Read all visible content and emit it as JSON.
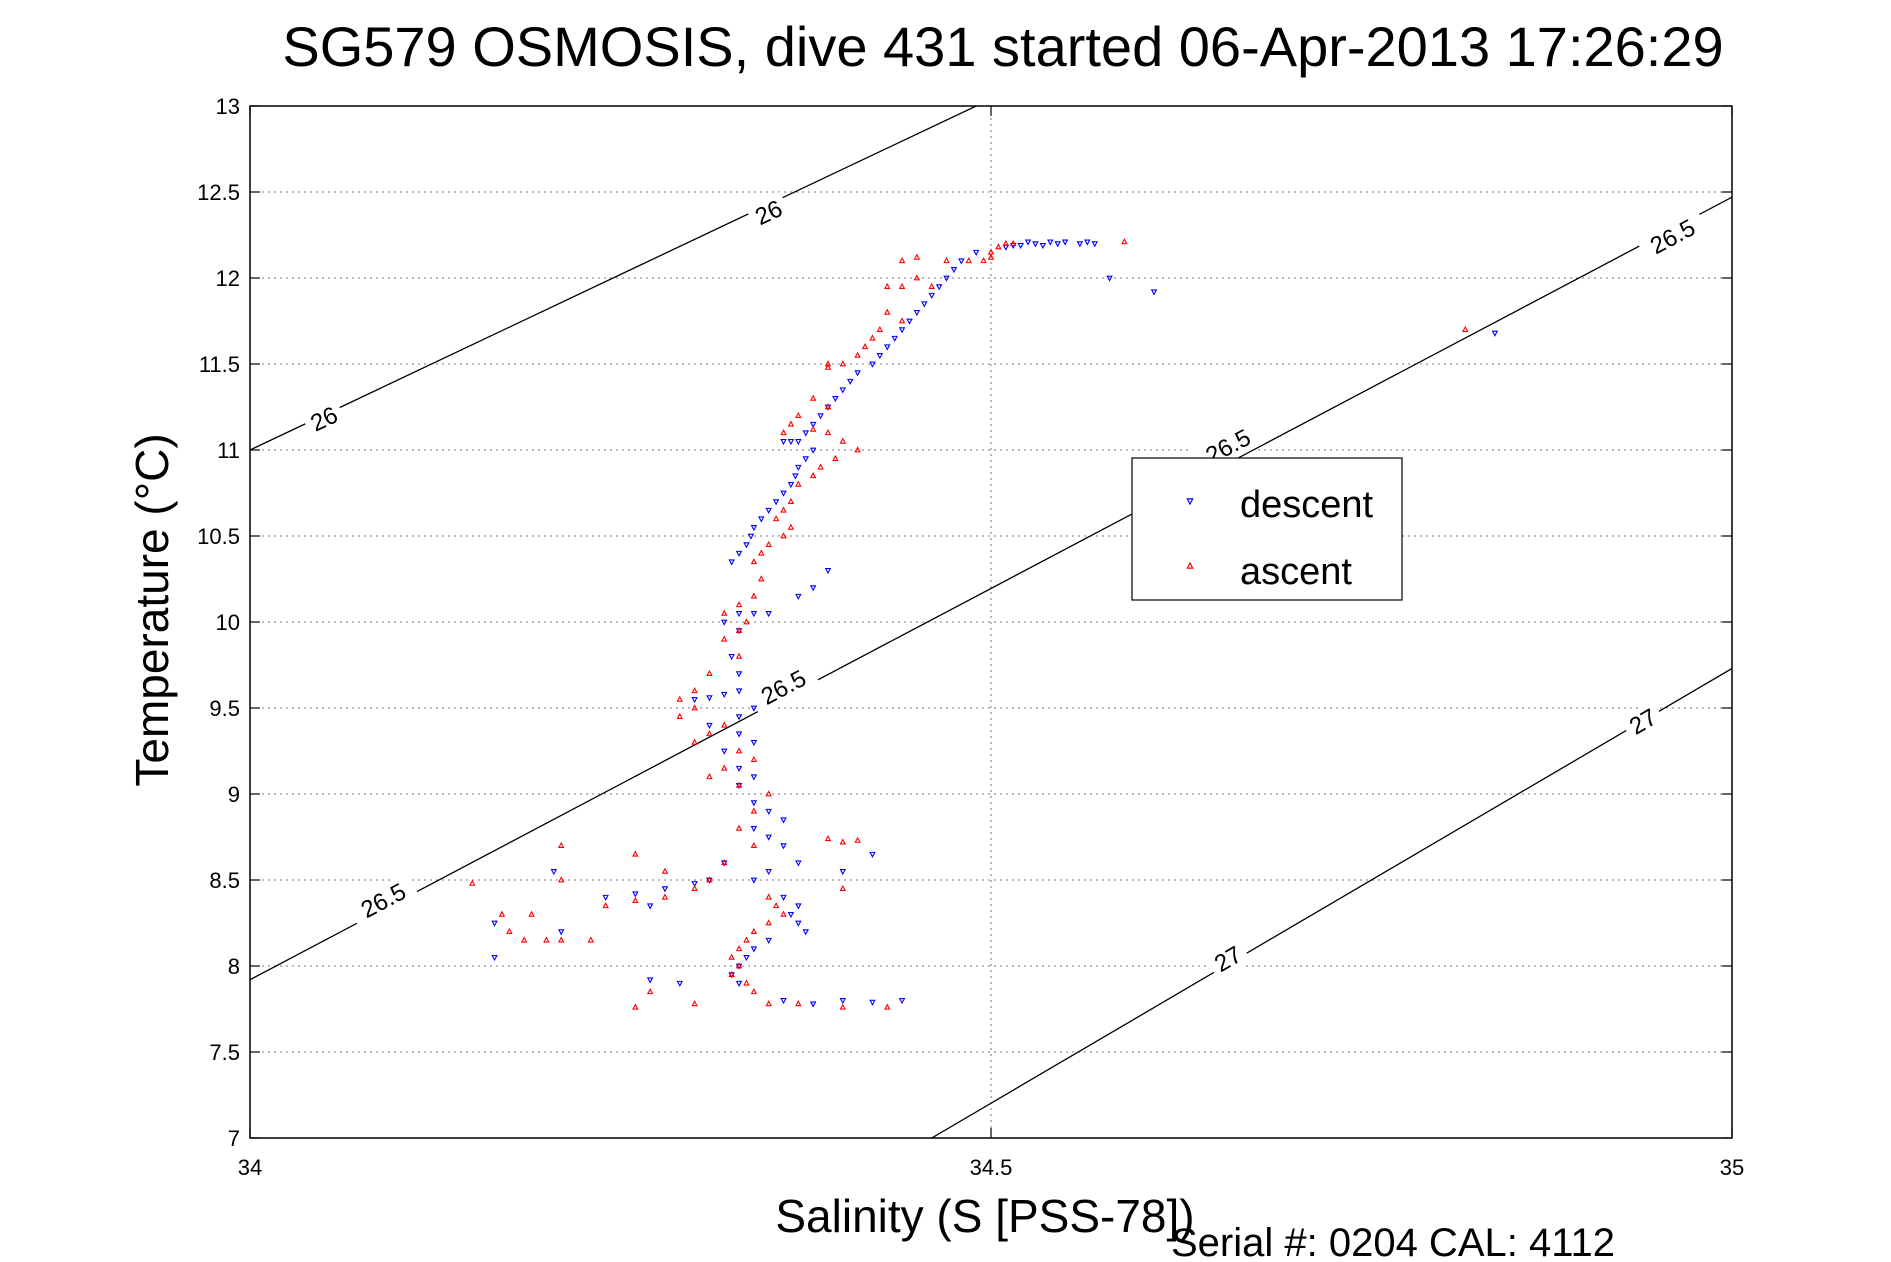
{
  "chart_data": {
    "type": "scatter",
    "title": "SG579 OSMOSIS, dive 431 started 06-Apr-2013 17:26:29",
    "xlabel": "Salinity (S [PSS-78])",
    "ylabel": "Temperature (°C)",
    "xlim": [
      34,
      35
    ],
    "ylim": [
      7,
      13
    ],
    "xticks": [
      34,
      34.5,
      35
    ],
    "yticks": [
      7,
      7.5,
      8,
      8.5,
      9,
      9.5,
      10,
      10.5,
      11,
      11.5,
      12,
      12.5,
      13
    ],
    "xtick_labels": [
      "34",
      "34.5",
      "35"
    ],
    "ytick_labels": [
      "7",
      "7.5",
      "8",
      "8.5",
      "9",
      "9.5",
      "10",
      "10.5",
      "11",
      "11.5",
      "12",
      "12.5",
      "13"
    ],
    "grid": true,
    "legend_position": "right-middle",
    "footer": "Serial #: 0204  CAL: 4112",
    "isopycnals": [
      {
        "value": 26,
        "label": "26",
        "points": [
          [
            34.0,
            11.0
          ],
          [
            34.49,
            13.0
          ]
        ],
        "label_points": [
          [
            34.05,
            11.18
          ],
          [
            34.35,
            12.38
          ]
        ]
      },
      {
        "value": 26.5,
        "label": "26.5",
        "points": [
          [
            34.0,
            7.92
          ],
          [
            35.0,
            12.47
          ]
        ],
        "label_points": [
          [
            34.09,
            8.38
          ],
          [
            34.36,
            9.62
          ],
          [
            34.66,
            11.02
          ],
          [
            34.96,
            12.24
          ]
        ]
      },
      {
        "value": 27,
        "label": "27",
        "points": [
          [
            34.46,
            7.0
          ],
          [
            35.0,
            9.73
          ]
        ],
        "label_points": [
          [
            34.66,
            8.04
          ],
          [
            34.94,
            9.42
          ]
        ]
      }
    ],
    "series": [
      {
        "name": "descent",
        "color": "#0000ff",
        "marker": "triangle-down",
        "points": [
          [
            34.56,
            12.2
          ],
          [
            34.54,
            12.21
          ],
          [
            34.53,
            12.2
          ],
          [
            34.52,
            12.19
          ],
          [
            34.51,
            12.18
          ],
          [
            34.57,
            12.2
          ],
          [
            34.565,
            12.21
          ],
          [
            34.55,
            12.21
          ],
          [
            34.545,
            12.2
          ],
          [
            34.535,
            12.19
          ],
          [
            34.525,
            12.21
          ],
          [
            34.515,
            12.19
          ],
          [
            34.58,
            12.0
          ],
          [
            34.61,
            11.92
          ],
          [
            34.84,
            11.68
          ],
          [
            34.49,
            12.15
          ],
          [
            34.48,
            12.1
          ],
          [
            34.475,
            12.05
          ],
          [
            34.47,
            12.0
          ],
          [
            34.465,
            11.95
          ],
          [
            34.46,
            11.9
          ],
          [
            34.455,
            11.85
          ],
          [
            34.45,
            11.8
          ],
          [
            34.445,
            11.75
          ],
          [
            34.44,
            11.7
          ],
          [
            34.435,
            11.65
          ],
          [
            34.43,
            11.6
          ],
          [
            34.425,
            11.55
          ],
          [
            34.42,
            11.5
          ],
          [
            34.41,
            11.45
          ],
          [
            34.405,
            11.4
          ],
          [
            34.4,
            11.35
          ],
          [
            34.395,
            11.3
          ],
          [
            34.39,
            11.25
          ],
          [
            34.385,
            11.2
          ],
          [
            34.38,
            11.15
          ],
          [
            34.375,
            11.1
          ],
          [
            34.37,
            11.05
          ],
          [
            34.365,
            11.05
          ],
          [
            34.36,
            11.05
          ],
          [
            34.38,
            11.0
          ],
          [
            34.375,
            10.95
          ],
          [
            34.37,
            10.9
          ],
          [
            34.368,
            10.85
          ],
          [
            34.365,
            10.8
          ],
          [
            34.36,
            10.75
          ],
          [
            34.355,
            10.7
          ],
          [
            34.35,
            10.65
          ],
          [
            34.345,
            10.6
          ],
          [
            34.34,
            10.55
          ],
          [
            34.338,
            10.5
          ],
          [
            34.335,
            10.45
          ],
          [
            34.33,
            10.4
          ],
          [
            34.325,
            10.35
          ],
          [
            34.39,
            10.3
          ],
          [
            34.38,
            10.2
          ],
          [
            34.37,
            10.15
          ],
          [
            34.35,
            10.05
          ],
          [
            34.34,
            10.05
          ],
          [
            34.33,
            10.05
          ],
          [
            34.32,
            10.0
          ],
          [
            34.33,
            9.95
          ],
          [
            34.325,
            9.8
          ],
          [
            34.33,
            9.7
          ],
          [
            34.33,
            9.6
          ],
          [
            34.32,
            9.58
          ],
          [
            34.31,
            9.56
          ],
          [
            34.3,
            9.55
          ],
          [
            34.34,
            9.5
          ],
          [
            34.33,
            9.45
          ],
          [
            34.31,
            9.4
          ],
          [
            34.33,
            9.35
          ],
          [
            34.34,
            9.3
          ],
          [
            34.32,
            9.25
          ],
          [
            34.33,
            9.15
          ],
          [
            34.34,
            9.1
          ],
          [
            34.33,
            9.05
          ],
          [
            34.34,
            8.95
          ],
          [
            34.35,
            8.9
          ],
          [
            34.36,
            8.85
          ],
          [
            34.34,
            8.8
          ],
          [
            34.35,
            8.75
          ],
          [
            34.36,
            8.7
          ],
          [
            34.37,
            8.6
          ],
          [
            34.35,
            8.55
          ],
          [
            34.34,
            8.5
          ],
          [
            34.3,
            8.48
          ],
          [
            34.28,
            8.45
          ],
          [
            34.26,
            8.42
          ],
          [
            34.24,
            8.4
          ],
          [
            34.27,
            8.35
          ],
          [
            34.36,
            8.4
          ],
          [
            34.37,
            8.35
          ],
          [
            34.365,
            8.3
          ],
          [
            34.37,
            8.25
          ],
          [
            34.375,
            8.2
          ],
          [
            34.35,
            8.15
          ],
          [
            34.34,
            8.1
          ],
          [
            34.335,
            8.05
          ],
          [
            34.33,
            8.0
          ],
          [
            34.325,
            7.95
          ],
          [
            34.33,
            7.9
          ],
          [
            34.29,
            7.9
          ],
          [
            34.27,
            7.92
          ],
          [
            34.36,
            7.8
          ],
          [
            34.38,
            7.78
          ],
          [
            34.4,
            7.8
          ],
          [
            34.42,
            7.79
          ],
          [
            34.44,
            7.8
          ],
          [
            34.165,
            8.25
          ],
          [
            34.165,
            8.05
          ],
          [
            34.21,
            8.2
          ],
          [
            34.205,
            8.55
          ],
          [
            34.42,
            8.65
          ],
          [
            34.4,
            8.55
          ],
          [
            34.32,
            8.6
          ],
          [
            34.31,
            8.5
          ]
        ]
      },
      {
        "name": "ascent",
        "color": "#ff0000",
        "marker": "triangle-up",
        "points": [
          [
            34.5,
            12.15
          ],
          [
            34.505,
            12.18
          ],
          [
            34.51,
            12.2
          ],
          [
            34.515,
            12.2
          ],
          [
            34.5,
            12.12
          ],
          [
            34.495,
            12.1
          ],
          [
            34.485,
            12.1
          ],
          [
            34.47,
            12.1
          ],
          [
            34.45,
            12.12
          ],
          [
            34.44,
            12.1
          ],
          [
            34.59,
            12.21
          ],
          [
            34.45,
            12.0
          ],
          [
            34.44,
            11.95
          ],
          [
            34.46,
            11.95
          ],
          [
            34.43,
            11.8
          ],
          [
            34.44,
            11.75
          ],
          [
            34.425,
            11.7
          ],
          [
            34.42,
            11.65
          ],
          [
            34.415,
            11.6
          ],
          [
            34.41,
            11.55
          ],
          [
            34.4,
            11.5
          ],
          [
            34.39,
            11.48
          ],
          [
            34.38,
            11.3
          ],
          [
            34.39,
            11.25
          ],
          [
            34.37,
            11.2
          ],
          [
            34.365,
            11.15
          ],
          [
            34.36,
            11.1
          ],
          [
            34.38,
            11.12
          ],
          [
            34.39,
            11.1
          ],
          [
            34.4,
            11.05
          ],
          [
            34.41,
            11.0
          ],
          [
            34.395,
            10.95
          ],
          [
            34.385,
            10.9
          ],
          [
            34.38,
            10.85
          ],
          [
            34.37,
            10.8
          ],
          [
            34.365,
            10.7
          ],
          [
            34.36,
            10.65
          ],
          [
            34.355,
            10.6
          ],
          [
            34.365,
            10.55
          ],
          [
            34.36,
            10.5
          ],
          [
            34.35,
            10.45
          ],
          [
            34.345,
            10.4
          ],
          [
            34.34,
            10.35
          ],
          [
            34.345,
            10.25
          ],
          [
            34.34,
            10.15
          ],
          [
            34.33,
            10.1
          ],
          [
            34.32,
            10.05
          ],
          [
            34.335,
            10.0
          ],
          [
            34.33,
            9.95
          ],
          [
            34.32,
            9.9
          ],
          [
            34.33,
            9.8
          ],
          [
            34.31,
            9.7
          ],
          [
            34.3,
            9.6
          ],
          [
            34.29,
            9.55
          ],
          [
            34.3,
            9.5
          ],
          [
            34.29,
            9.45
          ],
          [
            34.32,
            9.4
          ],
          [
            34.31,
            9.35
          ],
          [
            34.3,
            9.3
          ],
          [
            34.33,
            9.25
          ],
          [
            34.34,
            9.2
          ],
          [
            34.32,
            9.15
          ],
          [
            34.31,
            9.1
          ],
          [
            34.33,
            9.05
          ],
          [
            34.35,
            9.0
          ],
          [
            34.34,
            8.9
          ],
          [
            34.33,
            8.8
          ],
          [
            34.34,
            8.7
          ],
          [
            34.32,
            8.6
          ],
          [
            34.31,
            8.5
          ],
          [
            34.3,
            8.45
          ],
          [
            34.28,
            8.4
          ],
          [
            34.26,
            8.38
          ],
          [
            34.24,
            8.35
          ],
          [
            34.35,
            8.4
          ],
          [
            34.355,
            8.35
          ],
          [
            34.36,
            8.3
          ],
          [
            34.35,
            8.25
          ],
          [
            34.34,
            8.2
          ],
          [
            34.335,
            8.15
          ],
          [
            34.33,
            8.1
          ],
          [
            34.325,
            8.05
          ],
          [
            34.33,
            8.0
          ],
          [
            34.325,
            7.95
          ],
          [
            34.335,
            7.9
          ],
          [
            34.34,
            7.85
          ],
          [
            34.35,
            7.78
          ],
          [
            34.37,
            7.78
          ],
          [
            34.4,
            7.76
          ],
          [
            34.43,
            7.76
          ],
          [
            34.26,
            7.76
          ],
          [
            34.27,
            7.85
          ],
          [
            34.3,
            7.78
          ],
          [
            34.2,
            8.15
          ],
          [
            34.185,
            8.15
          ],
          [
            34.175,
            8.2
          ],
          [
            34.21,
            8.15
          ],
          [
            34.23,
            8.15
          ],
          [
            34.19,
            8.3
          ],
          [
            34.17,
            8.3
          ],
          [
            34.21,
            8.5
          ],
          [
            34.21,
            8.7
          ],
          [
            34.26,
            8.65
          ],
          [
            34.28,
            8.55
          ],
          [
            34.15,
            8.48
          ],
          [
            34.39,
            8.74
          ],
          [
            34.4,
            8.72
          ],
          [
            34.41,
            8.73
          ],
          [
            34.4,
            8.45
          ],
          [
            34.82,
            11.7
          ],
          [
            34.43,
            11.95
          ],
          [
            34.39,
            11.5
          ]
        ]
      }
    ]
  }
}
